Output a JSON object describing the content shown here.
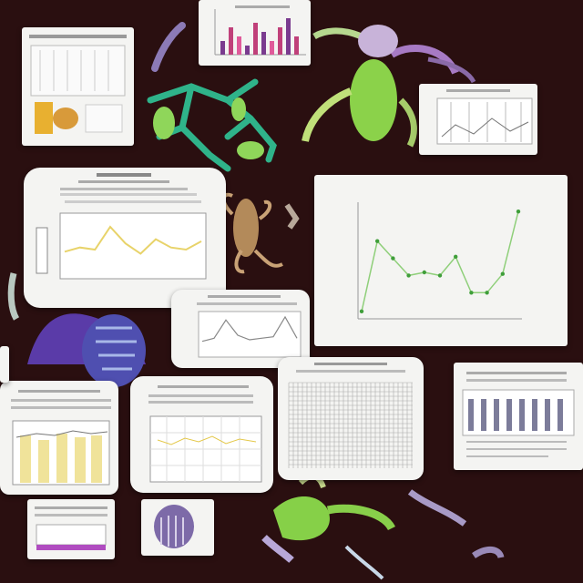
{
  "colors": {
    "background": "#2a0f10",
    "card": "#f4f4f2",
    "accent_green": "#6abf3a",
    "accent_teal": "#2fb38a",
    "accent_purple": "#6a4cc0",
    "accent_yellow": "#e8d36a"
  },
  "main_chart": {
    "title": "",
    "chart_data": {
      "type": "line",
      "title": "",
      "xlabel": "",
      "ylabel": "",
      "x": [
        1,
        2,
        3,
        4,
        5,
        6,
        7,
        8,
        9,
        10,
        11
      ],
      "values": [
        3,
        48,
        37,
        26,
        28,
        26,
        38,
        15,
        15,
        27,
        67
      ],
      "ylim": [
        0,
        70
      ],
      "y_ticks": [
        "",
        "",
        "",
        ""
      ],
      "x_ticks": [
        "",
        "",
        "",
        "",
        "",
        ""
      ],
      "grid": false,
      "line_color": "#8fcf7a",
      "marker_color": "#3f9e3a"
    }
  },
  "thumbnails": {
    "bar_thumbnail": {
      "chart_data": {
        "type": "bar",
        "values": [
          3,
          6,
          4,
          2,
          7,
          5,
          3,
          6,
          8,
          4
        ],
        "colors": [
          "#7a3b8f",
          "#c0407a",
          "#e05a9a",
          "#7a3b8f",
          "#c0407a",
          "#7a3b8f",
          "#e05a9a",
          "#c0407a",
          "#7a3b8f",
          "#c0407a"
        ]
      }
    },
    "yellow_line_thumbnail": {
      "chart_data": {
        "type": "line",
        "values": [
          10,
          12,
          11,
          22,
          14,
          9,
          16,
          12,
          11,
          15
        ],
        "line_color": "#e8d36a"
      }
    },
    "peak_line_thumbnail": {
      "chart_data": {
        "type": "line",
        "values": [
          8,
          10,
          22,
          12,
          9,
          10,
          11,
          24,
          10
        ],
        "line_color": "#888888"
      }
    }
  }
}
